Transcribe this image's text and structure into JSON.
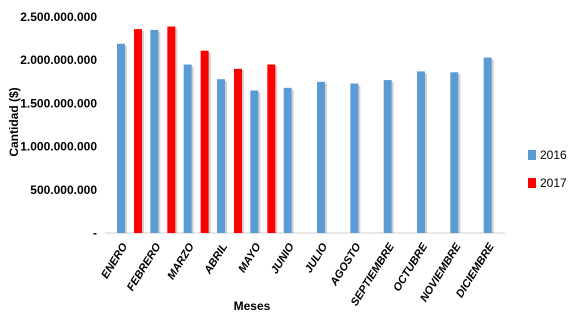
{
  "chart_data": {
    "type": "bar",
    "xlabel": "Meses",
    "ylabel": "Cantidad  ($)",
    "categories": [
      "ENERO",
      "FEBRERO",
      "MARZO",
      "ABRIL",
      "MAYO",
      "JUNIO",
      "JULIO",
      "AGOSTO",
      "SEPTIEMBRE",
      "OCTUBRE",
      "NOVIEMBRE",
      "DICIEMBRE"
    ],
    "y_ticks": [
      "-",
      "500.000.000",
      "1.000.000.000",
      "1.500.000.000",
      "2.000.000.000",
      "2.500.000.000"
    ],
    "ylim": [
      0,
      2500000000
    ],
    "legend_position": "right",
    "series": [
      {
        "name": "2016",
        "color": "#5b9bd5",
        "values": [
          2190000000,
          2350000000,
          1950000000,
          1780000000,
          1650000000,
          1680000000,
          1750000000,
          1730000000,
          1770000000,
          1870000000,
          1860000000,
          2030000000
        ]
      },
      {
        "name": "2017",
        "color": "#ff0000",
        "values": [
          2360000000,
          2390000000,
          2110000000,
          1900000000,
          1950000000,
          null,
          null,
          null,
          null,
          null,
          null,
          null
        ]
      }
    ]
  }
}
